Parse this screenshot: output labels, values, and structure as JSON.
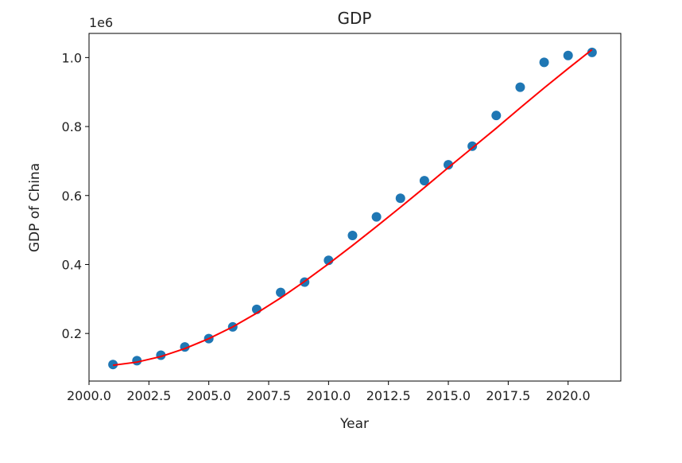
{
  "chart_data": {
    "type": "scatter",
    "title": "GDP",
    "xlabel": "Year",
    "ylabel": "GDP of China",
    "y_offset_label": "1e6",
    "xlim": [
      2000.0,
      2022.2
    ],
    "ylim": [
      0.062,
      1.07
    ],
    "x_ticks": [
      2000.0,
      2002.5,
      2005.0,
      2007.5,
      2010.0,
      2012.5,
      2015.0,
      2017.5,
      2020.0
    ],
    "x_tick_labels": [
      "2000.0",
      "2002.5",
      "2005.0",
      "2007.5",
      "2010.0",
      "2012.5",
      "2015.0",
      "2017.5",
      "2020.0"
    ],
    "y_ticks": [
      0.2,
      0.4,
      0.6,
      0.8,
      1.0
    ],
    "y_tick_labels": [
      "0.2",
      "0.4",
      "0.6",
      "0.8",
      "1.0"
    ],
    "grid": false,
    "colors": {
      "points": "#1f77b4",
      "fit": "#ff0000"
    },
    "series": [
      {
        "kind": "points",
        "x": [
          2001,
          2002,
          2003,
          2004,
          2005,
          2006,
          2007,
          2008,
          2009,
          2010,
          2011,
          2012,
          2013,
          2014,
          2015,
          2016,
          2017,
          2018,
          2019,
          2020,
          2021
        ],
        "y": [
          0.11,
          0.121,
          0.137,
          0.161,
          0.185,
          0.219,
          0.27,
          0.319,
          0.349,
          0.412,
          0.484,
          0.538,
          0.592,
          0.643,
          0.689,
          0.743,
          0.832,
          0.914,
          0.986,
          1.006,
          1.015
        ]
      },
      {
        "kind": "fit-line",
        "x": [
          2001,
          2002,
          2003,
          2004,
          2005,
          2006,
          2007,
          2008,
          2009,
          2010,
          2011,
          2012,
          2013,
          2014,
          2015,
          2016,
          2017,
          2018,
          2019,
          2020,
          2021
        ],
        "y": [
          0.108,
          0.117,
          0.133,
          0.156,
          0.185,
          0.219,
          0.259,
          0.303,
          0.351,
          0.402,
          0.455,
          0.51,
          0.566,
          0.623,
          0.681,
          0.738,
          0.795,
          0.854,
          0.912,
          0.968,
          1.023
        ]
      }
    ]
  }
}
